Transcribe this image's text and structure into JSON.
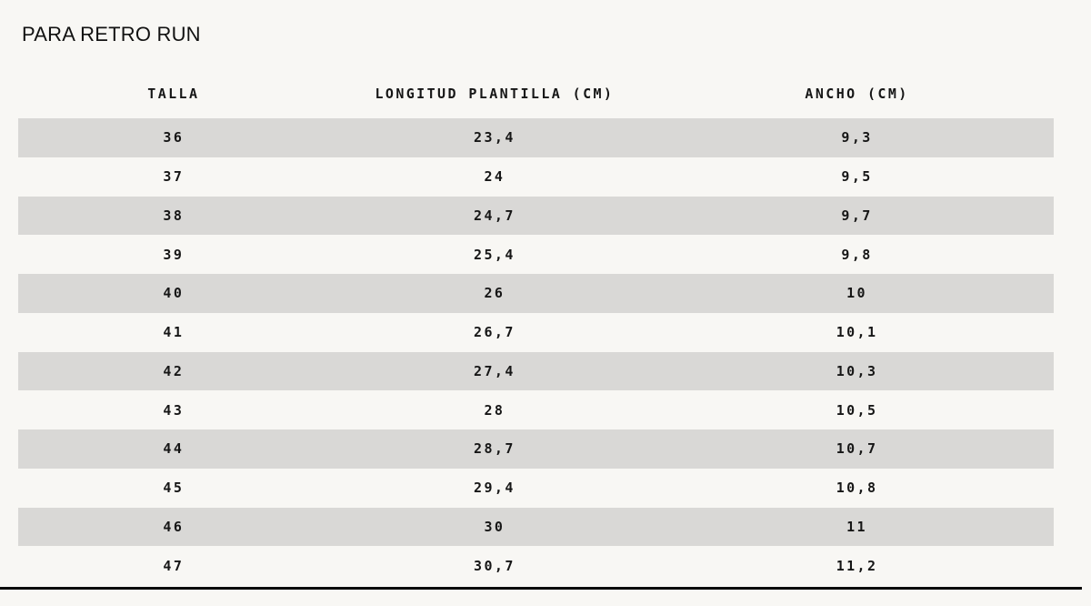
{
  "page": {
    "title": "PARA RETRO RUN",
    "background_color": "#f8f7f4",
    "stripe_color": "#d9d8d6",
    "text_color": "#161616",
    "rule_color": "#0b0b0b"
  },
  "table": {
    "columns": [
      "TALLA",
      "LONGITUD PLANTILLA (CM)",
      "ANCHO (CM)"
    ],
    "rows": [
      {
        "talla": "36",
        "longitud": "23,4",
        "ancho": "9,3"
      },
      {
        "talla": "37",
        "longitud": "24",
        "ancho": "9,5"
      },
      {
        "talla": "38",
        "longitud": "24,7",
        "ancho": "9,7"
      },
      {
        "talla": "39",
        "longitud": "25,4",
        "ancho": "9,8"
      },
      {
        "talla": "40",
        "longitud": "26",
        "ancho": "10"
      },
      {
        "talla": "41",
        "longitud": "26,7",
        "ancho": "10,1"
      },
      {
        "talla": "42",
        "longitud": "27,4",
        "ancho": "10,3"
      },
      {
        "talla": "43",
        "longitud": "28",
        "ancho": "10,5"
      },
      {
        "talla": "44",
        "longitud": "28,7",
        "ancho": "10,7"
      },
      {
        "talla": "45",
        "longitud": "29,4",
        "ancho": "10,8"
      },
      {
        "talla": "46",
        "longitud": "30",
        "ancho": "11"
      },
      {
        "talla": "47",
        "longitud": "30,7",
        "ancho": "11,2"
      }
    ]
  }
}
